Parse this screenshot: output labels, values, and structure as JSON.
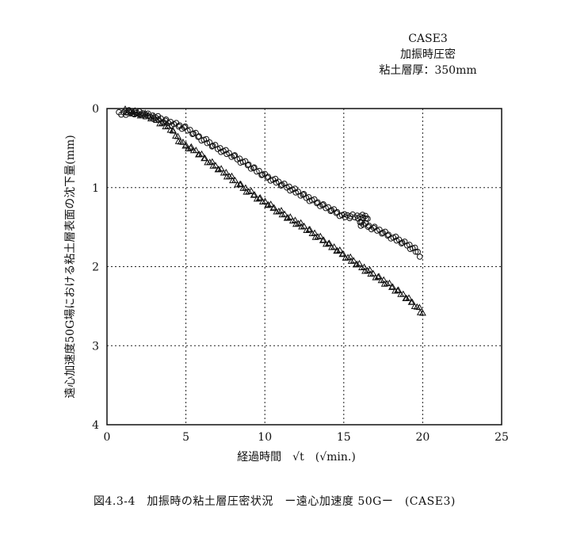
{
  "caption": "図4.3-4　加振時の粘土層圧密状況　ー遠心加速度 50Gー　(CASE3)",
  "chart_data": {
    "type": "scatter",
    "annotation_lines": [
      "CASE3",
      "加振時圧密",
      "粘土層厚：350mm"
    ],
    "xlabel": "経過時間　√t　(√min.)",
    "ylabel": "遠心加速度50G場における粘土層表面の沈下量(mm)",
    "xlim": [
      0,
      25
    ],
    "ylim": [
      0,
      4
    ],
    "y_inverted": true,
    "grid": true,
    "x_ticks": [
      "0",
      "5",
      "10",
      "15",
      "20",
      "25"
    ],
    "y_ticks": [
      "0",
      "1",
      "2",
      "3",
      "4"
    ],
    "series": [
      {
        "marker": "circle",
        "points": [
          [
            0.8,
            0.07
          ],
          [
            1.5,
            0.04
          ],
          [
            2.5,
            0.08
          ],
          [
            3.2,
            0.12
          ],
          [
            4.0,
            0.18
          ],
          [
            5.0,
            0.25
          ],
          [
            6.0,
            0.38
          ],
          [
            7.0,
            0.5
          ],
          [
            8.0,
            0.6
          ],
          [
            9.0,
            0.72
          ],
          [
            10.0,
            0.85
          ],
          [
            11.0,
            0.95
          ],
          [
            12.0,
            1.05
          ],
          [
            13.0,
            1.16
          ],
          [
            14.0,
            1.26
          ],
          [
            15.0,
            1.36
          ],
          [
            16.5,
            1.37
          ],
          [
            16.0,
            1.45
          ],
          [
            17.0,
            1.52
          ],
          [
            18.0,
            1.62
          ],
          [
            19.0,
            1.72
          ],
          [
            19.6,
            1.8
          ],
          [
            19.8,
            1.85
          ]
        ]
      },
      {
        "marker": "triangle",
        "points": [
          [
            1.2,
            0.03
          ],
          [
            2.0,
            0.06
          ],
          [
            3.0,
            0.12
          ],
          [
            4.0,
            0.25
          ],
          [
            4.8,
            0.45
          ],
          [
            5.5,
            0.52
          ],
          [
            6.5,
            0.68
          ],
          [
            7.5,
            0.82
          ],
          [
            8.5,
            0.98
          ],
          [
            9.5,
            1.12
          ],
          [
            10.5,
            1.25
          ],
          [
            11.5,
            1.38
          ],
          [
            12.5,
            1.5
          ],
          [
            13.5,
            1.64
          ],
          [
            14.5,
            1.78
          ],
          [
            15.5,
            1.92
          ],
          [
            16.5,
            2.05
          ],
          [
            17.5,
            2.18
          ],
          [
            18.5,
            2.32
          ],
          [
            19.5,
            2.48
          ],
          [
            20.0,
            2.6
          ]
        ]
      }
    ]
  }
}
